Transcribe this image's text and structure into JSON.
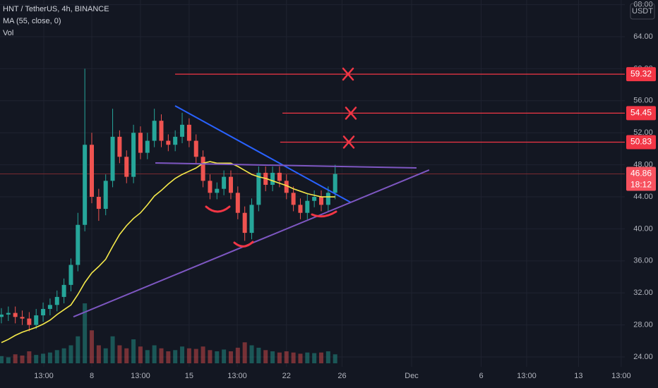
{
  "chart_data": {
    "type": "candlestick",
    "title": "HNT / TetherUS, 4h, BINANCE",
    "y_unit": "USDT",
    "countdown": "18:12",
    "up_color": "#26a69a",
    "down_color": "#ef5350",
    "grid": true,
    "x": [
      -6.5,
      -6,
      -5.5,
      -5,
      -4.5,
      -4,
      -3.5,
      -3,
      -2.5,
      -2,
      -1.5,
      -1,
      -0.5,
      0,
      0.5,
      1,
      1.5,
      2,
      2.5,
      3,
      3.5,
      4,
      4.5,
      5,
      5.5,
      6,
      6.5,
      7,
      7.5,
      8,
      8.5,
      9,
      9.5,
      10,
      10.5,
      11,
      11.5,
      12,
      12.5,
      13,
      13.5,
      14,
      14.5,
      15,
      15.5,
      16,
      16.5,
      17,
      17.5
    ],
    "open": [
      29.0,
      29.3,
      29.5,
      29.0,
      28.8,
      28.0,
      29.2,
      30.0,
      30.5,
      31.5,
      33.0,
      35.5,
      40.5,
      50.5,
      44.0,
      42.5,
      46.0,
      51.5,
      49.0,
      46.5,
      52.0,
      49.5,
      51.0,
      53.5,
      51.0,
      50.5,
      51.5,
      53.0,
      51.0,
      49.0,
      46.0,
      44.5,
      45.0,
      46.5,
      44.5,
      42.0,
      39.5,
      43.0,
      47.0,
      45.5,
      47.0,
      46.0,
      44.5,
      43.0,
      42.0,
      43.5,
      44.0,
      43.0,
      44.5
    ],
    "high": [
      30.1,
      30.3,
      30.3,
      29.8,
      29.6,
      30.0,
      30.8,
      31.3,
      32.3,
      33.8,
      36.3,
      42.0,
      60.0,
      52.0,
      45.0,
      46.8,
      55.0,
      52.3,
      49.8,
      53.0,
      52.8,
      52.0,
      55.0,
      54.3,
      51.8,
      52.3,
      54.5,
      53.8,
      51.8,
      49.8,
      46.8,
      45.8,
      47.3,
      47.3,
      45.3,
      42.8,
      43.8,
      47.8,
      47.8,
      47.8,
      47.8,
      46.8,
      45.3,
      43.8,
      44.3,
      44.8,
      44.8,
      45.3,
      48.0
    ],
    "low": [
      28.2,
      28.5,
      28.2,
      28.0,
      27.2,
      27.5,
      28.4,
      29.2,
      29.7,
      30.7,
      32.2,
      34.7,
      39.7,
      43.2,
      41.0,
      41.7,
      45.2,
      48.2,
      45.7,
      45.7,
      48.7,
      48.7,
      50.2,
      50.2,
      49.7,
      49.7,
      50.7,
      50.2,
      48.2,
      45.2,
      43.7,
      43.7,
      44.2,
      43.7,
      41.2,
      38.5,
      38.7,
      42.2,
      44.7,
      44.7,
      45.2,
      43.7,
      42.2,
      41.2,
      41.2,
      42.7,
      42.2,
      42.2,
      43.7
    ],
    "close": [
      29.3,
      29.5,
      29.0,
      28.8,
      28.0,
      29.2,
      30.0,
      30.5,
      31.5,
      33.0,
      35.5,
      40.5,
      50.5,
      44.0,
      42.5,
      46.0,
      51.5,
      49.0,
      46.5,
      52.0,
      49.5,
      51.0,
      53.5,
      51.0,
      50.5,
      51.5,
      53.0,
      51.0,
      49.0,
      46.0,
      44.5,
      45.0,
      46.5,
      44.5,
      42.0,
      39.5,
      43.0,
      47.0,
      45.5,
      47.0,
      46.0,
      44.5,
      43.0,
      42.0,
      43.5,
      44.0,
      43.0,
      44.5,
      46.86
    ],
    "ma": {
      "name": "MA (55, close, 0)",
      "color": "#f5e94a",
      "values": [
        25.8,
        26.2,
        26.7,
        27.1,
        27.4,
        27.7,
        28.1,
        28.6,
        29.3,
        29.9,
        30.5,
        31.8,
        33.3,
        34.5,
        35.3,
        36.2,
        37.8,
        39.3,
        40.4,
        41.3,
        42.0,
        43.0,
        44.1,
        44.8,
        45.6,
        46.3,
        46.8,
        47.2,
        47.6,
        48.2,
        48.4,
        48.2,
        48.2,
        48.2,
        47.8,
        47.3,
        46.8,
        46.5,
        46.3,
        46.0,
        45.7,
        45.4,
        45.0,
        44.7,
        44.4,
        44.2,
        44.0,
        44.0,
        44.0
      ]
    },
    "volume": {
      "name": "Vol",
      "values": [
        1.2,
        1.0,
        1.5,
        1.3,
        2.0,
        1.4,
        1.6,
        1.8,
        2.2,
        2.5,
        3.0,
        4.5,
        10,
        5.5,
        3.0,
        2.5,
        4.5,
        3.0,
        2.5,
        4.0,
        2.8,
        2.2,
        3.0,
        2.5,
        2.0,
        2.2,
        2.8,
        2.5,
        2.4,
        2.8,
        2.2,
        2.0,
        2.3,
        2.0,
        2.6,
        3.5,
        3.0,
        2.6,
        2.2,
        2.0,
        1.8,
        2.0,
        1.8,
        1.6,
        1.8,
        1.7,
        1.8,
        2.0,
        1.5
      ]
    },
    "levels": [
      {
        "value": 59.32,
        "x_start": 5.99,
        "x_mark": 18.43,
        "color": "#f23645"
      },
      {
        "value": 54.45,
        "x_start": 13.71,
        "x_mark": 18.63,
        "color": "#f23645"
      },
      {
        "value": 50.83,
        "x_start": 13.55,
        "x_mark": 18.48,
        "color": "#f23645"
      }
    ],
    "trendlines": [
      {
        "x": [
          5.99,
          18.63
        ],
        "y": [
          55.37,
          43.3
        ],
        "color": "#2962ff"
      },
      {
        "x": [
          -1.32,
          24.26
        ],
        "y": [
          29.02,
          47.35
        ],
        "color": "#7e57c2"
      },
      {
        "x": [
          4.57,
          23.35
        ],
        "y": [
          48.23,
          47.61
        ],
        "color": "#7e57c2"
      }
    ],
    "ylim": [
      22.77,
      68.58
    ],
    "yticks": [
      {
        "value": 24,
        "label": "24.00"
      },
      {
        "value": 28,
        "label": "28.00"
      },
      {
        "value": 32,
        "label": "32.00"
      },
      {
        "value": 36,
        "label": "36.00"
      },
      {
        "value": 40,
        "label": "40.00"
      },
      {
        "value": 44,
        "label": "44.00"
      },
      {
        "value": 48,
        "label": "48.00"
      },
      {
        "value": 52,
        "label": "52.00"
      },
      {
        "value": 56,
        "label": "56.00"
      },
      {
        "value": 60,
        "label": "60.00"
      },
      {
        "value": 64,
        "label": "64.00"
      },
      {
        "value": 68,
        "label": "68.00"
      }
    ],
    "xlim": [
      -6.6,
      38.33
    ],
    "xticks": [
      {
        "value": -3.45,
        "label": "13:00"
      },
      {
        "value": 0,
        "label": "8"
      },
      {
        "value": 3.5,
        "label": "13:00"
      },
      {
        "value": 7,
        "label": "15"
      },
      {
        "value": 10.46,
        "label": "13:00"
      },
      {
        "value": 14,
        "label": "22"
      },
      {
        "value": 18,
        "label": "26"
      },
      {
        "value": 23,
        "label": "Dec"
      },
      {
        "value": 28,
        "label": "6"
      },
      {
        "value": 31.27,
        "label": "13:00"
      },
      {
        "value": 35,
        "label": "13"
      },
      {
        "value": 38.07,
        "label": "13:00"
      }
    ]
  }
}
